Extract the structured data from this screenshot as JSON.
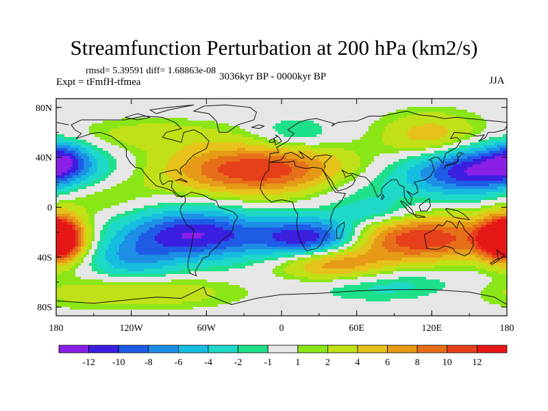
{
  "title": "Streamfunction Perturbation at 200 hPa (km2/s)",
  "stats_line": "rmsd= 5.39591  diff= 1.68863e-08",
  "experiment": "Expt = tFmfH-tfmea",
  "period": "3036kyr BP - 0000kyr BP",
  "season": "JJA",
  "lat_ticks": [
    {
      "label": "80N",
      "lat": 80
    },
    {
      "label": "40N",
      "lat": 40
    },
    {
      "label": "0",
      "lat": 0
    },
    {
      "label": "40S",
      "lat": -40
    },
    {
      "label": "80S",
      "lat": -80
    }
  ],
  "lon_ticks": [
    {
      "label": "180",
      "lon": -180
    },
    {
      "label": "120W",
      "lon": -120
    },
    {
      "label": "60W",
      "lon": -60
    },
    {
      "label": "0",
      "lon": 0
    },
    {
      "label": "60E",
      "lon": 60
    },
    {
      "label": "120E",
      "lon": 120
    },
    {
      "label": "180",
      "lon": 180
    }
  ],
  "colorbar": {
    "colors": [
      "#8a1fe6",
      "#3b1fe0",
      "#1f5ce6",
      "#1f8fe6",
      "#17bde0",
      "#1fd9c8",
      "#1fe08a",
      "#e6e6e6",
      "#8ae617",
      "#c2e017",
      "#e6c21a",
      "#e69a17",
      "#e6701a",
      "#e6401a",
      "#e61717"
    ],
    "labels": [
      "-12",
      "-10",
      "-8",
      "-6",
      "-4",
      "-2",
      "-1",
      "1",
      "2",
      "4",
      "6",
      "8",
      "10",
      "12"
    ]
  },
  "anomalies": [
    {
      "lon": 155,
      "lat": 30,
      "rlon": 40,
      "rlat": 14,
      "amp": -13
    },
    {
      "lon": -70,
      "lat": -22,
      "rlon": 40,
      "rlat": 14,
      "amp": -12
    },
    {
      "lon": 25,
      "lat": -25,
      "rlon": 30,
      "rlat": 11,
      "amp": -13
    },
    {
      "lon": 110,
      "lat": -25,
      "rlon": 45,
      "rlat": 13,
      "amp": 12
    },
    {
      "lon": 178,
      "lat": -25,
      "rlon": 14,
      "rlat": 12,
      "amp": 11
    },
    {
      "lon": -178,
      "lat": -25,
      "rlon": 14,
      "rlat": 12,
      "amp": 11
    },
    {
      "lon": -20,
      "lat": 30,
      "rlon": 50,
      "rlat": 14,
      "amp": 12
    },
    {
      "lon": 40,
      "lat": -45,
      "rlon": 30,
      "rlat": 10,
      "amp": 8
    },
    {
      "lon": 120,
      "lat": 55,
      "rlon": 28,
      "rlat": 14,
      "amp": 6
    },
    {
      "lon": -120,
      "lat": -42,
      "rlon": 24,
      "rlat": 12,
      "amp": -5
    },
    {
      "lon": -105,
      "lat": 58,
      "rlon": 45,
      "rlat": 9,
      "amp": 3
    },
    {
      "lon": -150,
      "lat": 10,
      "rlon": 30,
      "rlat": 12,
      "amp": 3
    },
    {
      "lon": -120,
      "lat": -68,
      "rlon": 60,
      "rlat": 9,
      "amp": 4
    },
    {
      "lon": 60,
      "lat": 15,
      "rlon": 30,
      "rlat": 10,
      "amp": -2
    },
    {
      "lon": 10,
      "lat": 58,
      "rlon": 22,
      "rlat": 9,
      "amp": -3
    },
    {
      "lon": -175,
      "lat": 38,
      "rlon": 14,
      "rlat": 10,
      "amp": -6
    },
    {
      "lon": 75,
      "lat": -5,
      "rlon": 25,
      "rlat": 8,
      "amp": -4
    },
    {
      "lon": 80,
      "lat": -62,
      "rlon": 50,
      "rlat": 9,
      "amp": -3
    }
  ]
}
